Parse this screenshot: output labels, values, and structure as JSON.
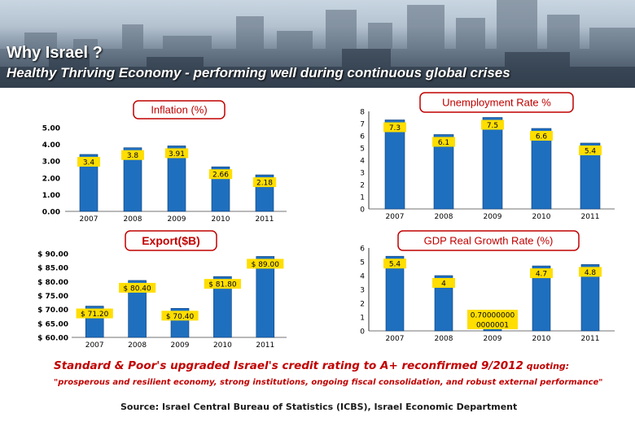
{
  "header": {
    "title": "Why Israel ?",
    "subtitle": "Healthy Thriving Economy - performing well during continuous global crises"
  },
  "colors": {
    "bar": "#1f6fbf",
    "bar_edge": "#0b3f7a",
    "label_bg": "#ffde00",
    "title_border": "#c00000",
    "note_red": "#c00000"
  },
  "chart_data": [
    {
      "id": "inflation",
      "type": "bar",
      "title": "Inflation (%)",
      "categories": [
        "2007",
        "2008",
        "2009",
        "2010",
        "2011"
      ],
      "values": [
        3.4,
        3.8,
        3.91,
        2.66,
        2.18
      ],
      "value_labels": [
        "3.4",
        "3.8",
        "3.91",
        "2.66",
        "2.18"
      ],
      "yticks": [
        "0.00",
        "1.00",
        "2.00",
        "3.00",
        "4.00",
        "5.00"
      ],
      "ylim": [
        0,
        5
      ],
      "grid": false,
      "legend": "none"
    },
    {
      "id": "unemployment",
      "type": "bar",
      "title": "Unemployment Rate %",
      "categories": [
        "2007",
        "2008",
        "2009",
        "2010",
        "2011"
      ],
      "values": [
        7.3,
        6.1,
        7.5,
        6.6,
        5.4
      ],
      "value_labels": [
        "7.3",
        "6.1",
        "7.5",
        "6.6",
        "5.4"
      ],
      "yticks": [
        "0",
        "1",
        "2",
        "3",
        "4",
        "5",
        "6",
        "7",
        "8"
      ],
      "ylim": [
        0,
        8
      ],
      "grid": false,
      "legend": "none"
    },
    {
      "id": "export",
      "type": "bar",
      "title": "Export($B)",
      "categories": [
        "2007",
        "2008",
        "2009",
        "2010",
        "2011"
      ],
      "values": [
        71.2,
        80.4,
        70.4,
        81.8,
        89.0
      ],
      "value_labels": [
        "$ 71.20",
        "$ 80.40",
        "$ 70.40",
        "$ 81.80",
        "$ 89.00"
      ],
      "yticks": [
        "$ 60.00",
        "$ 65.00",
        "$ 70.00",
        "$ 75.00",
        "$ 80.00",
        "$ 85.00",
        "$ 90.00"
      ],
      "ylim": [
        60,
        90
      ],
      "grid": false,
      "legend": "none"
    },
    {
      "id": "gdp",
      "type": "bar",
      "title": "GDP Real Growth Rate (%)",
      "categories": [
        "2007",
        "2008",
        "2009",
        "2010",
        "2011"
      ],
      "values": [
        5.4,
        4,
        0.7,
        4.7,
        4.8
      ],
      "value_labels": [
        "5.4",
        "4",
        "0.70000000\n0000001",
        "4.7",
        "4.8"
      ],
      "yticks": [
        "0",
        "1",
        "2",
        "3",
        "4",
        "5",
        "6"
      ],
      "ylim": [
        0,
        6
      ],
      "grid": false,
      "legend": "none"
    }
  ],
  "notes": {
    "rating_main": "Standard & Poor's upgraded Israel's credit rating to A+ reconfirmed 9/2012",
    "rating_tail": " quoting:",
    "quote": "\"prosperous and resilient economy, strong institutions, ongoing fiscal consolidation, and robust external performance\"",
    "source": "Source: Israel Central Bureau of Statistics (ICBS), Israel Economic Department"
  }
}
